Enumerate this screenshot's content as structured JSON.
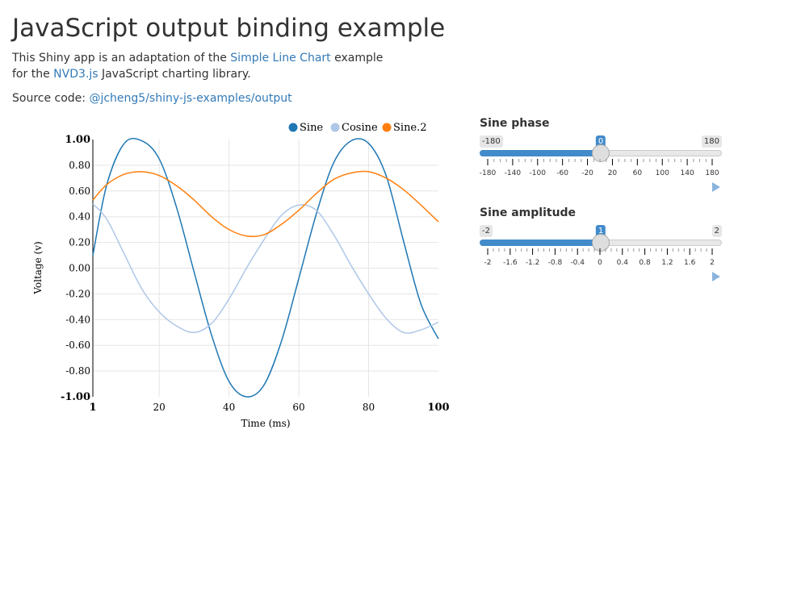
{
  "page": {
    "title": "JavaScript output binding example",
    "desc": {
      "p1": "This Shiny app is an adaptation of the ",
      "link1": "Simple Line Chart",
      "p2": " example for the ",
      "link2": "NVD3.js",
      "p3": " JavaScript charting library."
    },
    "source": {
      "label": "Source code: ",
      "link": "@jcheng5/shiny-js-examples/output"
    }
  },
  "chart_data": {
    "type": "line",
    "title": "",
    "xlabel": "Time (ms)",
    "ylabel": "Voltage (v)",
    "xlim": [
      1,
      100
    ],
    "ylim": [
      -1,
      1
    ],
    "x_ticks": [
      "1",
      "20",
      "40",
      "60",
      "80",
      "100"
    ],
    "y_ticks": [
      "1.00",
      "0.80",
      "0.60",
      "0.40",
      "0.20",
      "0.00",
      "-0.20",
      "-0.40",
      "-0.60",
      "-0.80",
      "-1.00"
    ],
    "legend_position": "top-right",
    "grid": true,
    "x": [
      1,
      5,
      10,
      15,
      20,
      25,
      30,
      35,
      40,
      45,
      50,
      55,
      60,
      65,
      70,
      75,
      80,
      85,
      90,
      95,
      100
    ],
    "series": [
      {
        "name": "Sine",
        "color": "#1f77b4",
        "values": [
          0.1,
          0.65,
          0.97,
          0.99,
          0.85,
          0.47,
          -0.03,
          -0.52,
          -0.88,
          -1.0,
          -0.91,
          -0.57,
          -0.08,
          0.42,
          0.82,
          0.99,
          0.97,
          0.72,
          0.21,
          -0.28,
          -0.55
        ]
      },
      {
        "name": "Cosine",
        "color": "#aec7e8",
        "values": [
          0.5,
          0.38,
          0.11,
          -0.16,
          -0.34,
          -0.45,
          -0.5,
          -0.43,
          -0.24,
          0.0,
          0.22,
          0.41,
          0.49,
          0.45,
          0.26,
          0.02,
          -0.2,
          -0.39,
          -0.5,
          -0.48,
          -0.42
        ]
      },
      {
        "name": "Sine.2",
        "color": "#ff7f0e",
        "values": [
          0.53,
          0.65,
          0.73,
          0.75,
          0.72,
          0.64,
          0.53,
          0.4,
          0.3,
          0.25,
          0.26,
          0.34,
          0.45,
          0.58,
          0.69,
          0.74,
          0.75,
          0.7,
          0.61,
          0.49,
          0.36
        ]
      }
    ]
  },
  "sliders": {
    "phase": {
      "label": "Sine phase",
      "min_label": "-180",
      "max_label": "180",
      "value_label": "0",
      "min": -180,
      "max": 180,
      "value": 0,
      "tick_labels": [
        "-180",
        "-140",
        "-100",
        "-60",
        "-20",
        "20",
        "60",
        "100",
        "140",
        "180"
      ]
    },
    "amplitude": {
      "label": "Sine amplitude",
      "min_label": "-2",
      "max_label": "2",
      "value_label": "1",
      "min": -2,
      "max": 2,
      "value": 1,
      "tick_labels": [
        "-2",
        "-1.6",
        "-1.2",
        "-0.8",
        "-0.4",
        "0",
        "0.4",
        "0.8",
        "1.2",
        "1.6",
        "2"
      ]
    }
  },
  "colors": {
    "accent": "#428bca",
    "link": "#337ab7",
    "text": "#333333"
  }
}
